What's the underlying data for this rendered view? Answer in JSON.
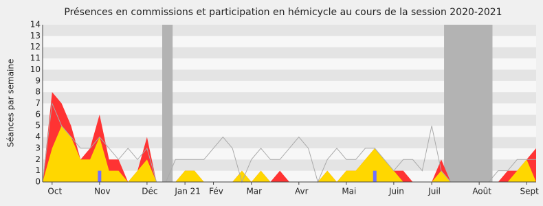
{
  "chart_data": {
    "type": "area",
    "title": "Présences en commissions et participation en hémicycle au cours de la session 2020-2021",
    "y_label": "Séances par semaine",
    "categories": [
      null,
      "Oct",
      null,
      null,
      null,
      null,
      "Nov",
      null,
      null,
      null,
      null,
      "Déc",
      null,
      null,
      null,
      "Jan 21",
      null,
      null,
      "Fév",
      null,
      null,
      null,
      "Mar",
      null,
      null,
      null,
      null,
      "Avr",
      null,
      null,
      null,
      null,
      "Mai",
      null,
      null,
      null,
      null,
      "Juin",
      null,
      null,
      null,
      "Juil",
      null,
      null,
      null,
      null,
      "Août",
      null,
      null,
      null,
      null,
      "Sept",
      null
    ],
    "ylim": [
      0,
      14
    ],
    "yticks": [
      0,
      1,
      2,
      3,
      4,
      5,
      6,
      7,
      8,
      9,
      10,
      11,
      12,
      13,
      14
    ],
    "highlight_ranges": [
      [
        12.6,
        13.7
      ],
      [
        42.3,
        47.4
      ]
    ],
    "highlight_color": "#b3b3b3",
    "series": [
      {
        "style": "area",
        "color": "#ff3333",
        "values": [
          0,
          8,
          7,
          5,
          2,
          3,
          6,
          2,
          2,
          0,
          1,
          4,
          0,
          0,
          0,
          1,
          1,
          0,
          0,
          0,
          0,
          1,
          0,
          1,
          0,
          1,
          0,
          0,
          0,
          0,
          1,
          0,
          1,
          1,
          2,
          3,
          2,
          1,
          1,
          0,
          0,
          0,
          2,
          0,
          0,
          0,
          0,
          0,
          0,
          1,
          1,
          2,
          3
        ]
      },
      {
        "style": "area",
        "color": "#ffd700",
        "values": [
          0,
          3,
          5,
          4,
          2,
          2,
          4,
          1,
          1,
          0,
          1,
          2,
          0,
          0,
          0,
          1,
          1,
          0,
          0,
          0,
          0,
          1,
          0,
          1,
          0,
          0,
          0,
          0,
          0,
          0,
          1,
          0,
          1,
          1,
          2,
          3,
          2,
          1,
          0,
          0,
          0,
          0,
          1,
          0,
          0,
          0,
          0,
          0,
          0,
          0,
          1,
          2,
          0
        ]
      },
      {
        "style": "line",
        "color": "#aaaaaa",
        "values": [
          0,
          7,
          5,
          4,
          3,
          3,
          4,
          3,
          2,
          3,
          2,
          3,
          0,
          0,
          2,
          2,
          2,
          2,
          3,
          4,
          3,
          0,
          2,
          3,
          2,
          2,
          3,
          4,
          3,
          0,
          2,
          3,
          2,
          2,
          3,
          3,
          2,
          1,
          2,
          2,
          1,
          5,
          1,
          0,
          0,
          0,
          0,
          0,
          1,
          1,
          2,
          2,
          2
        ]
      },
      {
        "style": "bar",
        "color": "#7070ff",
        "values": [
          0,
          0,
          0,
          0,
          0,
          0,
          1,
          0,
          0,
          0,
          0,
          0,
          0,
          0,
          0,
          0,
          0,
          0,
          0,
          0,
          0,
          0,
          0,
          0,
          0,
          0,
          0,
          0,
          0,
          0,
          0,
          0,
          0,
          0,
          0,
          1,
          0,
          0,
          0,
          0,
          0,
          0,
          0,
          0,
          0,
          0,
          0,
          0,
          0,
          0,
          0,
          0,
          0
        ]
      }
    ]
  }
}
